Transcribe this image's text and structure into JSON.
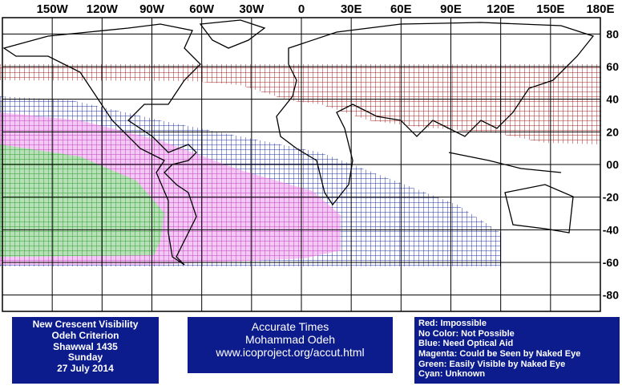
{
  "map": {
    "lon_labels": [
      "150W",
      "120W",
      "90W",
      "60W",
      "30W",
      "0",
      "30E",
      "60E",
      "90E",
      "120E",
      "150E",
      "180E"
    ],
    "lat_labels": [
      "80",
      "60",
      "40",
      "20",
      "00",
      "-20",
      "-40",
      "-60",
      "-80"
    ]
  },
  "info": [
    "New Crescent Visibility",
    "Odeh Criterion",
    "Shawwal 1435",
    "Sunday",
    "27 July 2014"
  ],
  "credits": [
    "Accurate Times",
    "Mohammad Odeh",
    "www.icoproject.org/accut.html"
  ],
  "legend": [
    "Red: Impossible",
    "No Color: Not Possible",
    "Blue: Need Optical Aid",
    "Magenta: Could be Seen by Naked Eye",
    "Green: Easily Visible by Naked Eye",
    "Cyan: Unknown"
  ]
}
